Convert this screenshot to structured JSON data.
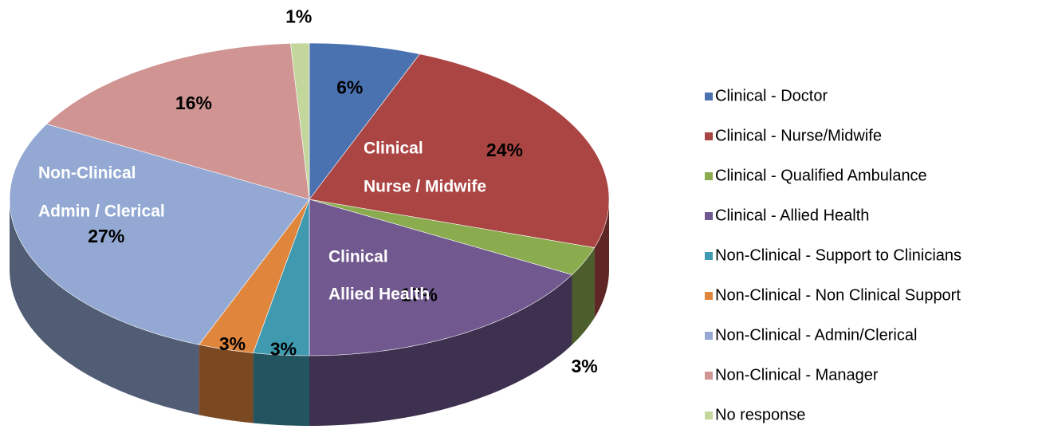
{
  "chart_data": {
    "type": "pie",
    "categories": [
      "Clinical - Doctor",
      "Clinical - Nurse/Midwife",
      "Clinical - Qualified Ambulance",
      "Clinical - Allied Health",
      "Non-Clinical - Support to Clinicians",
      "Non-Clinical - Non Clinical Support",
      "Non-Clinical - Admin/Clerical",
      "Non-Clinical - Manager",
      "No response"
    ],
    "values": [
      6,
      24,
      3,
      17,
      3,
      3,
      27,
      16,
      1
    ],
    "value_labels": [
      "6%",
      "24%",
      "3%",
      "17%",
      "3%",
      "3%",
      "27%",
      "16%",
      "1%"
    ],
    "colors": [
      "#4a72b0",
      "#ab4543",
      "#8aab4e",
      "#71588f",
      "#3f9ab0",
      "#e0853c",
      "#93a9d3",
      "#d09493",
      "#c3d79c"
    ],
    "annotations": [
      "Clinical",
      "Nurse / Midwife",
      "Clinical",
      "Allied Health",
      "Non-Clinical",
      "Admin / Clerical"
    ],
    "legend": "right"
  }
}
